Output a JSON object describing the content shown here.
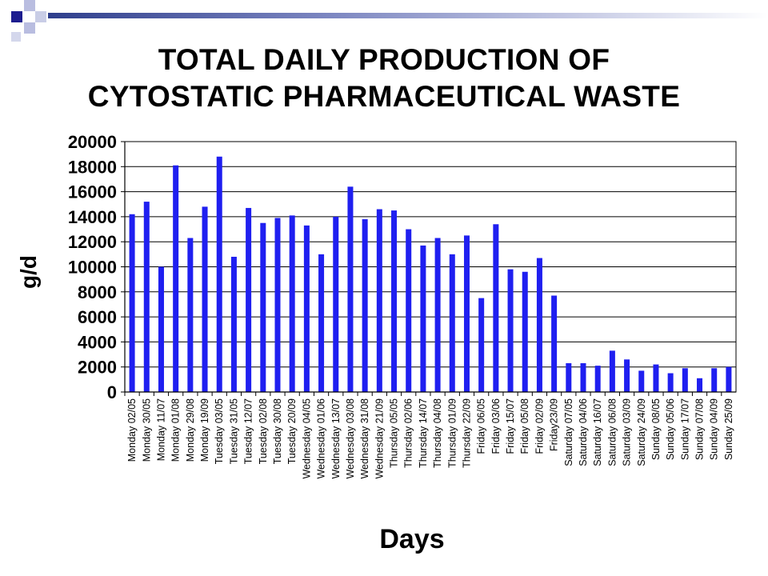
{
  "theme": {
    "bar_color": "#1f1ff0",
    "accent": "#2e3e8c"
  },
  "chart_data": {
    "type": "bar",
    "title_lines": [
      "TOTAL DAILY PRODUCTION OF",
      "CYTOSTATIC PHARMACEUTICAL WASTE"
    ],
    "xlabel": "Days",
    "ylabel": "g/d",
    "ylim": [
      0,
      20000
    ],
    "yticks": [
      0,
      2000,
      4000,
      6000,
      8000,
      10000,
      12000,
      14000,
      16000,
      18000,
      20000
    ],
    "grid": true,
    "categories": [
      "Monday 02/05",
      "Monday 30/05",
      "Monday 11/07",
      "Monday 01/08",
      "Monday 29/08",
      "Monday 19/09",
      "Tuesday 03/05",
      "Tuesday 31/05",
      "Tuesday 12/07",
      "Tuesday 02/08",
      "Tuesday 30/08",
      "Tuesday 20/09",
      "Wednesday 04/05",
      "Wednesday 01/06",
      "Wednesday 13/07",
      "Wednesday 03/08",
      "Wednesday 31/08",
      "Wednesday 21/09",
      "Thursday 05/05",
      "Thursday 02/06",
      "Thursday 14/07",
      "Thursday 04/08",
      "Thursday 01/09",
      "Thursday 22/09",
      "Friday 06/05",
      "Friday 03/06",
      "Friday 15/07",
      "Friday 05/08",
      "Friday 02/09",
      "Friday23/09",
      "Saturday 07/05",
      "Saturday 04/06",
      "Saturday 16/07",
      "Saturday 06/08",
      "Saturday 03/09",
      "Saturday 24/09",
      "Sunday 08/05",
      "Sunday 05/06",
      "Sunday 17/07",
      "Sunday 07/08",
      "Sunday 04/09",
      "Sunday 25/09"
    ],
    "values": [
      14200,
      15200,
      10000,
      18100,
      12300,
      14800,
      18800,
      10800,
      14700,
      13500,
      13900,
      14100,
      13300,
      11000,
      14000,
      16400,
      13800,
      14600,
      14500,
      13000,
      11700,
      12300,
      11000,
      12500,
      7500,
      13400,
      9800,
      9600,
      10700,
      7700,
      2300,
      2300,
      2100,
      3300,
      2600,
      1700,
      2200,
      1500,
      1900,
      1100,
      1900,
      2000
    ]
  }
}
